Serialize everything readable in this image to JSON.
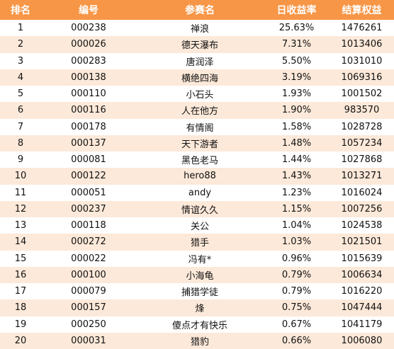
{
  "headers": [
    "排名",
    "编号",
    "参赛名",
    "日收益率",
    "结算权益"
  ],
  "rows": [
    [
      "1",
      "000238",
      "禅浪",
      "25.63%",
      "1476261"
    ],
    [
      "2",
      "000026",
      "德天瀑布",
      "7.31%",
      "1013406"
    ],
    [
      "3",
      "000283",
      "唐润泽",
      "5.50%",
      "1031010"
    ],
    [
      "4",
      "000138",
      "横绝四海",
      "3.19%",
      "1069316"
    ],
    [
      "5",
      "000110",
      "小石头",
      "1.93%",
      "1001502"
    ],
    [
      "6",
      "000116",
      "人在他方",
      "1.90%",
      "983570"
    ],
    [
      "7",
      "000178",
      "有情阁",
      "1.58%",
      "1028728"
    ],
    [
      "8",
      "000137",
      "天下游者",
      "1.48%",
      "1057234"
    ],
    [
      "9",
      "000081",
      "黑色老马",
      "1.44%",
      "1027868"
    ],
    [
      "10",
      "000122",
      "hero88",
      "1.43%",
      "1013271"
    ],
    [
      "11",
      "000051",
      "andy",
      "1.23%",
      "1016024"
    ],
    [
      "12",
      "000237",
      "情谊久久",
      "1.15%",
      "1007256"
    ],
    [
      "13",
      "000118",
      "关公",
      "1.04%",
      "1024538"
    ],
    [
      "14",
      "000272",
      "猎手",
      "1.03%",
      "1021501"
    ],
    [
      "15",
      "000022",
      "冯有*",
      "0.96%",
      "1015639"
    ],
    [
      "16",
      "000100",
      "小海龟",
      "0.79%",
      "1006634"
    ],
    [
      "17",
      "000079",
      "捕猎学徒",
      "0.79%",
      "1016220"
    ],
    [
      "18",
      "000157",
      "烽",
      "0.75%",
      "1047444"
    ],
    [
      "19",
      "000250",
      "傻点才有快乐",
      "0.67%",
      "1041179"
    ],
    [
      "20",
      "000031",
      "猎豹",
      "0.66%",
      "1006080"
    ]
  ],
  "colors": {
    "header_bg": "#f79646",
    "header_text": "#ffffff",
    "stripe": "#fde9d9"
  }
}
